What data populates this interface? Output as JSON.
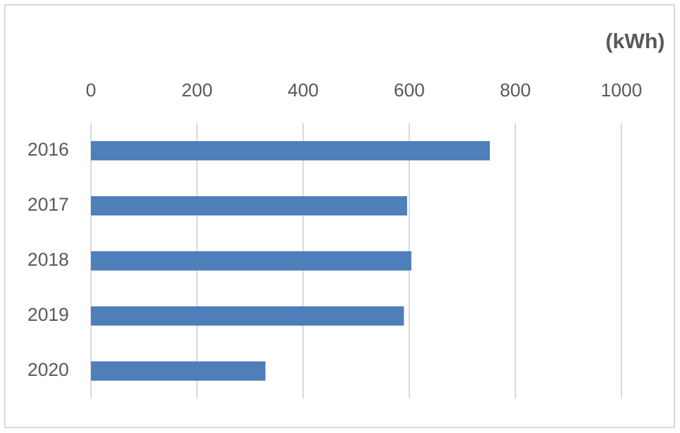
{
  "chart_data": {
    "type": "bar",
    "orientation": "horizontal",
    "axis_label": "(kWh)",
    "categories": [
      "2016",
      "2017",
      "2018",
      "2019",
      "2020"
    ],
    "values": [
      752,
      596,
      604,
      590,
      329
    ],
    "color": "#4e7fbb",
    "xlim": [
      0,
      1000
    ],
    "xticks": [
      0,
      200,
      400,
      600,
      800,
      1000
    ],
    "grid": true,
    "xaxis_position": "top"
  }
}
